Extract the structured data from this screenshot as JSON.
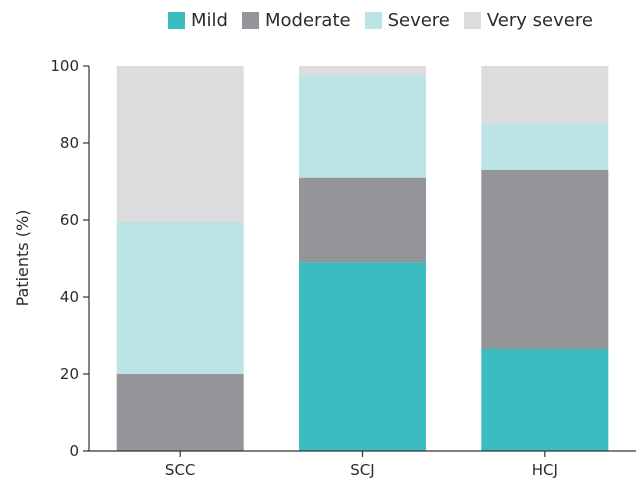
{
  "chart_data": {
    "type": "bar",
    "stacked": true,
    "categories": [
      "SCC",
      "SCJ",
      "HCJ"
    ],
    "series": [
      {
        "name": "Mild",
        "values": [
          0,
          49,
          26.5
        ],
        "color": "#3bbcc0"
      },
      {
        "name": "Moderate",
        "values": [
          20,
          22,
          46.5
        ],
        "color": "#939598"
      },
      {
        "name": "Severe",
        "values": [
          39.5,
          26.5,
          12
        ],
        "color": "#bce4e5"
      },
      {
        "name": "Very severe",
        "values": [
          40.5,
          2.5,
          15
        ],
        "color": "#dcdcde"
      }
    ],
    "title": "",
    "xlabel": "",
    "ylabel": "Patients (%)",
    "ylim": [
      0,
      100
    ],
    "yticks": [
      0,
      20,
      40,
      60,
      80,
      100
    ],
    "grid": false,
    "legend_position": "top"
  }
}
